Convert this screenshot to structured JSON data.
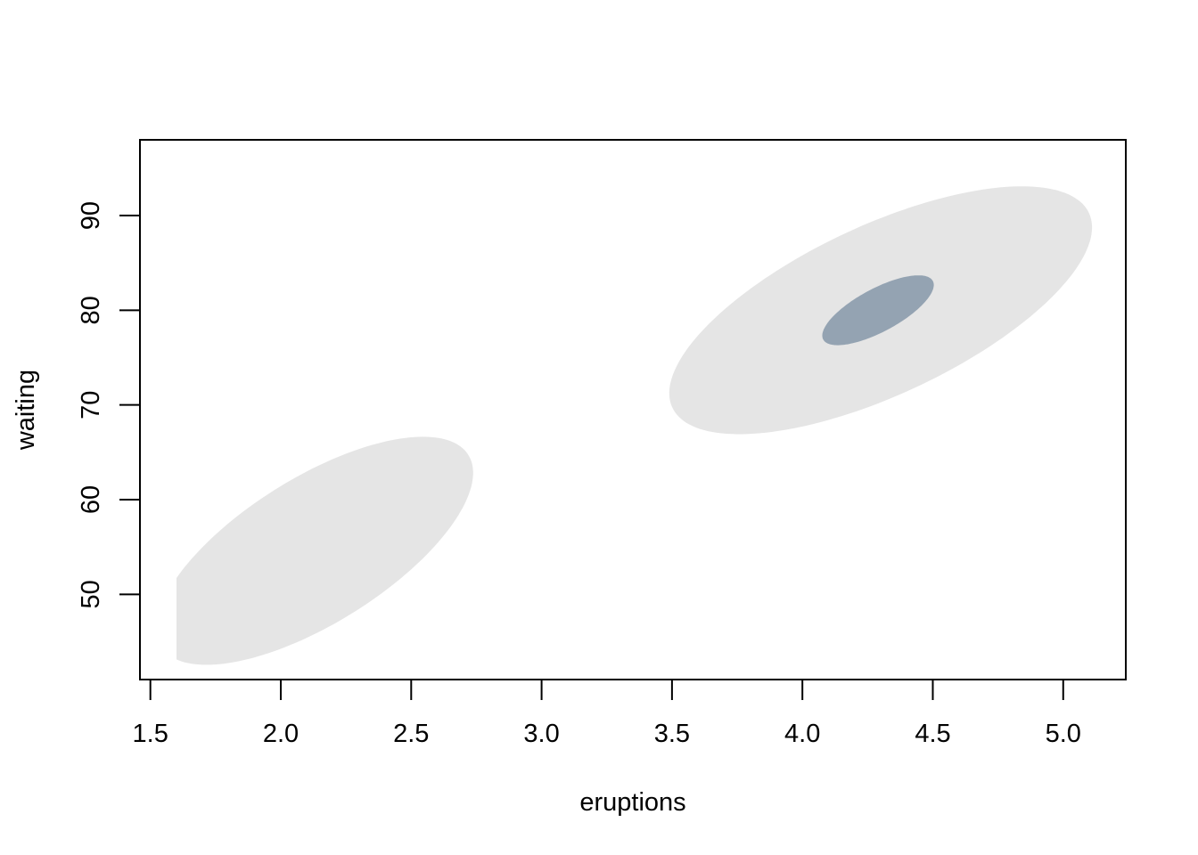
{
  "chart_data": {
    "type": "area",
    "title": "",
    "xlabel": "eruptions",
    "ylabel": "waiting",
    "xlim": [
      1.46,
      5.24
    ],
    "ylim": [
      41,
      98
    ],
    "grid": false,
    "x_ticks": [
      1.5,
      2.0,
      2.5,
      3.0,
      3.5,
      4.0,
      4.5,
      5.0
    ],
    "x_tick_labels": [
      "1.5",
      "2.0",
      "2.5",
      "3.0",
      "3.5",
      "4.0",
      "4.5",
      "5.0"
    ],
    "y_ticks": [
      50,
      60,
      70,
      80,
      90
    ],
    "y_tick_labels": [
      "50",
      "60",
      "70",
      "80",
      "90"
    ],
    "clip_x_min": 1.6,
    "regions": [
      {
        "name": "outer-region-lower",
        "color": "#e5e5e5",
        "center": [
          2.13,
          54.6
        ],
        "axis1": [
          0.6,
          9.5
        ],
        "axis2": [
          -0.095,
          7.4
        ]
      },
      {
        "name": "outer-region-upper",
        "color": "#e5e5e5",
        "center": [
          4.3,
          80.0
        ],
        "axis1": [
          0.8,
          10.2
        ],
        "axis2": [
          -0.13,
          8.2
        ]
      },
      {
        "name": "inner-region-upper",
        "color": "#94a3b2",
        "center": [
          4.29,
          80.0
        ],
        "axis1": [
          0.21,
          3.1
        ],
        "axis2": [
          -0.04,
          2.0
        ]
      }
    ]
  }
}
